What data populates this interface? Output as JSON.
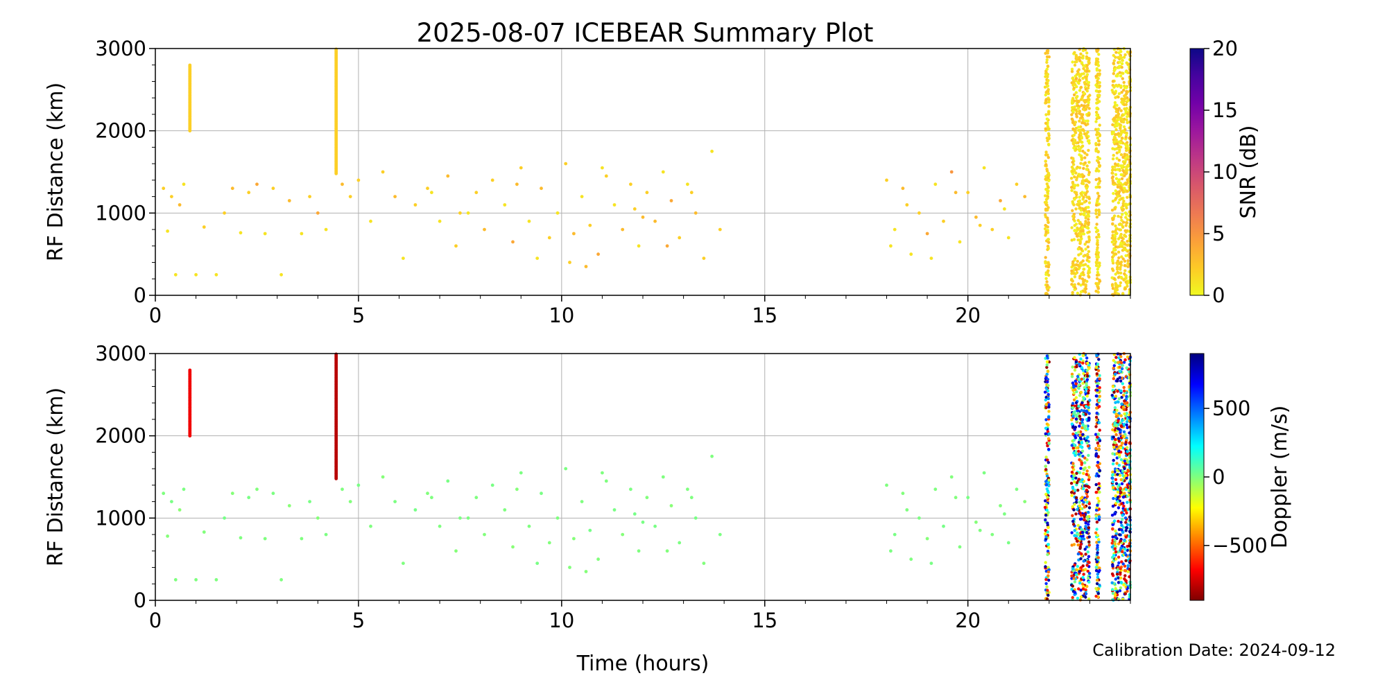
{
  "figure": {
    "title": "2025-08-07 ICEBEAR Summary Plot",
    "calibration_note": "Calibration Date: 2024-09-12",
    "xlabel": "Time (hours)"
  },
  "chart_data": [
    {
      "type": "scatter",
      "panel": "top",
      "color_encoding": "SNR",
      "ylabel": "RF Distance (km)",
      "xlabel": "",
      "xlim": [
        0,
        24
      ],
      "ylim": [
        0,
        3000
      ],
      "x_ticks": [
        0,
        5,
        10,
        15,
        20
      ],
      "x_tick_labels": [
        "0",
        "5",
        "10",
        "15",
        "20"
      ],
      "y_ticks": [
        0,
        1000,
        2000,
        3000
      ],
      "y_tick_labels": [
        "0",
        "1000",
        "2000",
        "3000"
      ],
      "grid": true,
      "colorbar": {
        "label": "SNR (dB)",
        "range": [
          0,
          20
        ],
        "ticks": [
          0,
          5,
          10,
          15,
          20
        ],
        "tick_labels": [
          "0",
          "5",
          "10",
          "15",
          "20"
        ],
        "colormap": "plasma_r",
        "stops": [
          "#f0f921",
          "#fdca26",
          "#fb9f3a",
          "#ed7953",
          "#d8576b",
          "#bd3786",
          "#9c179e",
          "#7201a8",
          "#46039f",
          "#0d0887"
        ]
      },
      "series": [
        {
          "description": "scattered echoes 0-14 h",
          "x": [
            0.2,
            0.3,
            0.4,
            0.5,
            0.6,
            0.7,
            1.0,
            1.2,
            1.5,
            1.7,
            1.9,
            2.1,
            2.3,
            2.5,
            2.7,
            2.9,
            3.1,
            3.3,
            3.6,
            3.8,
            4.0,
            4.2,
            4.6,
            4.8,
            5.0,
            5.3,
            5.6,
            5.9,
            6.1,
            6.4,
            6.7,
            7.0,
            7.2,
            7.4,
            7.7,
            7.9,
            8.1,
            8.3,
            8.6,
            8.8,
            9.0,
            9.2,
            9.5,
            9.7,
            9.9,
            10.1,
            10.3,
            10.5,
            10.7,
            10.9,
            11.1,
            11.3,
            11.5,
            11.7,
            11.9,
            12.1,
            12.3,
            12.5,
            12.7,
            12.9,
            13.1,
            13.3,
            13.5,
            13.7,
            13.9,
            10.6,
            11.0,
            11.8,
            12.6,
            13.2,
            9.4,
            8.9,
            7.5,
            6.8,
            10.2,
            12.0
          ],
          "y": [
            1300,
            780,
            1200,
            250,
            1100,
            1350,
            250,
            830,
            250,
            1000,
            1300,
            760,
            1250,
            1350,
            750,
            1300,
            250,
            1150,
            750,
            1200,
            1000,
            800,
            1350,
            1200,
            1400,
            900,
            1500,
            1200,
            450,
            1100,
            1300,
            900,
            1450,
            600,
            1000,
            1250,
            800,
            1400,
            1100,
            650,
            1550,
            900,
            1300,
            700,
            1000,
            1600,
            750,
            1200,
            850,
            500,
            1450,
            1100,
            800,
            1350,
            600,
            1250,
            900,
            1500,
            1150,
            700,
            1350,
            1000,
            450,
            1750,
            800,
            350,
            1550,
            1050,
            600,
            1250,
            450,
            1350,
            1000,
            1250,
            400,
            950
          ],
          "snr": [
            2,
            1,
            2,
            1,
            3,
            1,
            1,
            2,
            1,
            2,
            3,
            1,
            2,
            4,
            1,
            2,
            1,
            3,
            1,
            2,
            4,
            1,
            3,
            2,
            2,
            1,
            2,
            3,
            1,
            2,
            2,
            1,
            3,
            2,
            1,
            2,
            3,
            2,
            1,
            4,
            2,
            1,
            3,
            2,
            1,
            2,
            3,
            1,
            2,
            4,
            2,
            1,
            3,
            2,
            1,
            2,
            3,
            1,
            4,
            2,
            1,
            3,
            2,
            1,
            2,
            3,
            1,
            2,
            4,
            2,
            1,
            3,
            2,
            1,
            2,
            3
          ],
          "doppler": [
            0,
            -10,
            10,
            0,
            -20,
            5,
            0,
            -5,
            0,
            15,
            -10,
            0,
            10,
            -5,
            0,
            5,
            0,
            -15,
            0,
            10,
            -10,
            5,
            0,
            -5,
            10,
            0,
            -10,
            5,
            0,
            15,
            -5,
            0,
            10,
            -10,
            5,
            0,
            -5,
            10,
            0,
            -15,
            5,
            0,
            10,
            -5,
            0,
            5,
            -10,
            0,
            15,
            -5,
            0,
            10,
            -10,
            5,
            0,
            -5,
            10,
            0,
            -15,
            5,
            0,
            10,
            -5,
            0,
            5,
            -10,
            0,
            15,
            -5,
            0,
            10,
            -10,
            5,
            0,
            -5,
            10
          ]
        },
        {
          "description": "echoes 18-21.5 h",
          "x": [
            18.0,
            18.2,
            18.4,
            18.6,
            18.8,
            19.0,
            19.2,
            19.4,
            19.6,
            19.8,
            20.0,
            20.2,
            20.4,
            20.6,
            20.8,
            21.0,
            21.2,
            21.4,
            18.1,
            18.5,
            19.1,
            19.7,
            20.3,
            20.9
          ],
          "y": [
            1400,
            800,
            1300,
            500,
            1000,
            750,
            1350,
            900,
            1500,
            650,
            1250,
            950,
            1550,
            800,
            1150,
            700,
            1350,
            1200,
            600,
            1100,
            450,
            1250,
            850,
            1050
          ],
          "snr": [
            2,
            1,
            3,
            1,
            2,
            4,
            1,
            2,
            5,
            1,
            2,
            3,
            1,
            2,
            4,
            1,
            2,
            3,
            1,
            2,
            1,
            3,
            2,
            1
          ],
          "doppler": [
            0,
            10,
            -5,
            0,
            5,
            -10,
            0,
            15,
            -5,
            0,
            10,
            -10,
            5,
            0,
            -5,
            10,
            0,
            -15,
            5,
            0,
            10,
            -5,
            0,
            5
          ]
        }
      ]
    },
    {
      "type": "scatter",
      "panel": "bottom",
      "color_encoding": "Doppler",
      "ylabel": "RF Distance (km)",
      "xlabel": "Time (hours)",
      "xlim": [
        0,
        24
      ],
      "ylim": [
        0,
        3000
      ],
      "x_ticks": [
        0,
        5,
        10,
        15,
        20
      ],
      "x_tick_labels": [
        "0",
        "5",
        "10",
        "15",
        "20"
      ],
      "y_ticks": [
        0,
        1000,
        2000,
        3000
      ],
      "y_tick_labels": [
        "0",
        "1000",
        "2000",
        "3000"
      ],
      "grid": true,
      "colorbar": {
        "label": "Doppler (m/s)",
        "range": [
          -900,
          900
        ],
        "ticks": [
          -500,
          0,
          500
        ],
        "tick_labels": [
          "−500",
          "0",
          "500"
        ],
        "colormap": "jet_r",
        "stops": [
          "#7f0000",
          "#ff0000",
          "#ff7f00",
          "#ffff00",
          "#7fff7f",
          "#00ffff",
          "#007fff",
          "#0000ff",
          "#00007f"
        ]
      },
      "streaks": [
        {
          "x": 4.45,
          "y_range": [
            1480,
            3000
          ],
          "snr": 2,
          "doppler": -800
        },
        {
          "x": 0.85,
          "y_range": [
            2000,
            2800
          ],
          "snr": 2,
          "doppler": -700
        }
      ],
      "dense_bands": [
        {
          "x_range": [
            21.9,
            22.0
          ],
          "y_range": [
            0,
            3000
          ],
          "snr": [
            0,
            3
          ],
          "doppler": [
            -900,
            900
          ]
        },
        {
          "x_range": [
            22.55,
            23.0
          ],
          "y_range": [
            0,
            3000
          ],
          "snr": [
            0,
            3
          ],
          "doppler": [
            -900,
            900
          ]
        },
        {
          "x_range": [
            23.15,
            23.25
          ],
          "y_range": [
            0,
            3000
          ],
          "snr": [
            0,
            3
          ],
          "doppler": [
            -900,
            900
          ]
        },
        {
          "x_range": [
            23.55,
            23.95
          ],
          "y_range": [
            0,
            3000
          ],
          "snr": [
            0,
            3
          ],
          "doppler": [
            -900,
            900
          ]
        },
        {
          "x_range": [
            23.97,
            24.0
          ],
          "y_range": [
            0,
            3000
          ],
          "snr": [
            0,
            3
          ],
          "doppler": [
            -900,
            900
          ]
        }
      ]
    }
  ]
}
